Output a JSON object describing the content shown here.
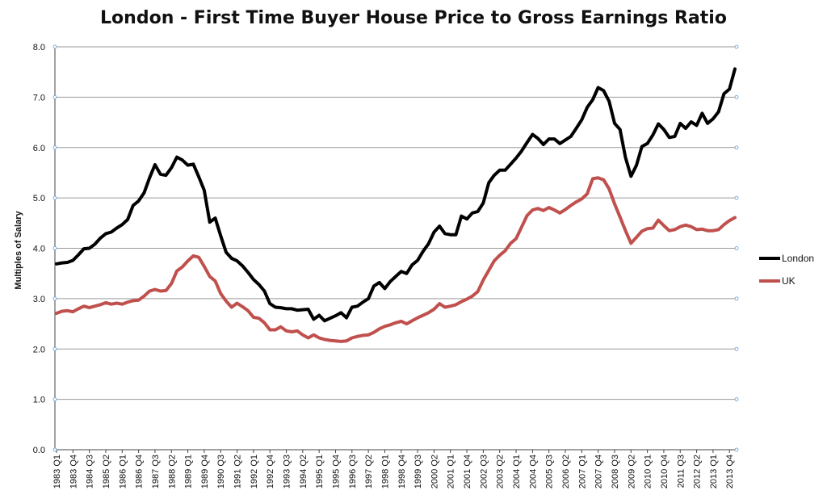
{
  "chart_data": {
    "type": "line",
    "title": "London - First Time Buyer House Price to Gross Earnings Ratio",
    "xlabel": "",
    "ylabel": "Multiples of Salary",
    "ylim": [
      0,
      8
    ],
    "yticks": [
      "0.0",
      "1.0",
      "2.0",
      "3.0",
      "4.0",
      "5.0",
      "6.0",
      "7.0",
      "8.0"
    ],
    "x_start": "1983 Q1",
    "x_end": "2013 Q4",
    "x_tick_labels": [
      "1983 Q1",
      "1983 Q4",
      "1984 Q3",
      "1985 Q2",
      "1986 Q1",
      "1986 Q4",
      "1987 Q3",
      "1988 Q2",
      "1989 Q1",
      "1989 Q4",
      "1990 Q3",
      "1991 Q2",
      "1992 Q1",
      "1992 Q4",
      "1993 Q3",
      "1994 Q2",
      "1995 Q1",
      "1995 Q4",
      "1996 Q3",
      "1997 Q2",
      "1998 Q1",
      "1998 Q4",
      "1999 Q3",
      "2000 Q2",
      "2001 Q1",
      "2001 Q4",
      "2002 Q3",
      "2003 Q2",
      "2004 Q1",
      "2004 Q4",
      "2005 Q3",
      "2006 Q2",
      "2007 Q1",
      "2007 Q4",
      "2008 Q3",
      "2009 Q2",
      "2010 Q1",
      "2010 Q4",
      "2011 Q3",
      "2012 Q2",
      "2013 Q1",
      "2013 Q4"
    ],
    "grid": true,
    "legend": "right",
    "series": [
      {
        "name": "London",
        "color": "#000000",
        "values": [
          3.69,
          3.71,
          3.72,
          3.76,
          3.87,
          3.99,
          4.0,
          4.08,
          4.2,
          4.29,
          4.32,
          4.4,
          4.47,
          4.57,
          4.85,
          4.94,
          5.1,
          5.4,
          5.66,
          5.47,
          5.45,
          5.6,
          5.81,
          5.75,
          5.65,
          5.67,
          5.42,
          5.15,
          4.52,
          4.6,
          4.25,
          3.92,
          3.8,
          3.75,
          3.65,
          3.52,
          3.38,
          3.28,
          3.15,
          2.9,
          2.83,
          2.82,
          2.8,
          2.8,
          2.77,
          2.78,
          2.79,
          2.59,
          2.67,
          2.56,
          2.61,
          2.66,
          2.72,
          2.62,
          2.83,
          2.85,
          2.93,
          3.0,
          3.25,
          3.32,
          3.2,
          3.34,
          3.44,
          3.54,
          3.5,
          3.67,
          3.76,
          3.94,
          4.09,
          4.32,
          4.44,
          4.29,
          4.27,
          4.27,
          4.64,
          4.58,
          4.7,
          4.73,
          4.9,
          5.3,
          5.45,
          5.55,
          5.55,
          5.67,
          5.79,
          5.93,
          6.1,
          6.26,
          6.18,
          6.06,
          6.17,
          6.17,
          6.08,
          6.15,
          6.22,
          6.38,
          6.55,
          6.8,
          6.95,
          7.19,
          7.13,
          6.92,
          6.48,
          6.36,
          5.8,
          5.43,
          5.65,
          6.02,
          6.08,
          6.25,
          6.47,
          6.36,
          6.2,
          6.22,
          6.48,
          6.38,
          6.51,
          6.44,
          6.68,
          6.48,
          6.57,
          6.71,
          7.07,
          7.16,
          7.56
        ]
      },
      {
        "name": "UK",
        "color": "#c0504d",
        "values": [
          2.71,
          2.75,
          2.76,
          2.74,
          2.8,
          2.85,
          2.82,
          2.85,
          2.88,
          2.92,
          2.89,
          2.91,
          2.89,
          2.93,
          2.96,
          2.97,
          3.05,
          3.15,
          3.18,
          3.15,
          3.16,
          3.3,
          3.55,
          3.63,
          3.75,
          3.85,
          3.82,
          3.64,
          3.44,
          3.35,
          3.1,
          2.95,
          2.83,
          2.91,
          2.84,
          2.76,
          2.63,
          2.61,
          2.52,
          2.38,
          2.38,
          2.44,
          2.36,
          2.34,
          2.36,
          2.28,
          2.22,
          2.28,
          2.22,
          2.19,
          2.17,
          2.16,
          2.15,
          2.16,
          2.22,
          2.25,
          2.27,
          2.28,
          2.33,
          2.4,
          2.45,
          2.48,
          2.52,
          2.55,
          2.5,
          2.56,
          2.62,
          2.67,
          2.72,
          2.79,
          2.9,
          2.83,
          2.85,
          2.88,
          2.94,
          2.99,
          3.05,
          3.14,
          3.37,
          3.56,
          3.75,
          3.86,
          3.95,
          4.1,
          4.19,
          4.42,
          4.65,
          4.76,
          4.79,
          4.75,
          4.81,
          4.76,
          4.7,
          4.77,
          4.85,
          4.92,
          4.98,
          5.08,
          5.38,
          5.4,
          5.36,
          5.18,
          4.88,
          4.62,
          4.35,
          4.1,
          4.22,
          4.34,
          4.39,
          4.4,
          4.56,
          4.45,
          4.35,
          4.37,
          4.43,
          4.46,
          4.43,
          4.37,
          4.38,
          4.35,
          4.35,
          4.37,
          4.47,
          4.55,
          4.61
        ]
      }
    ]
  }
}
